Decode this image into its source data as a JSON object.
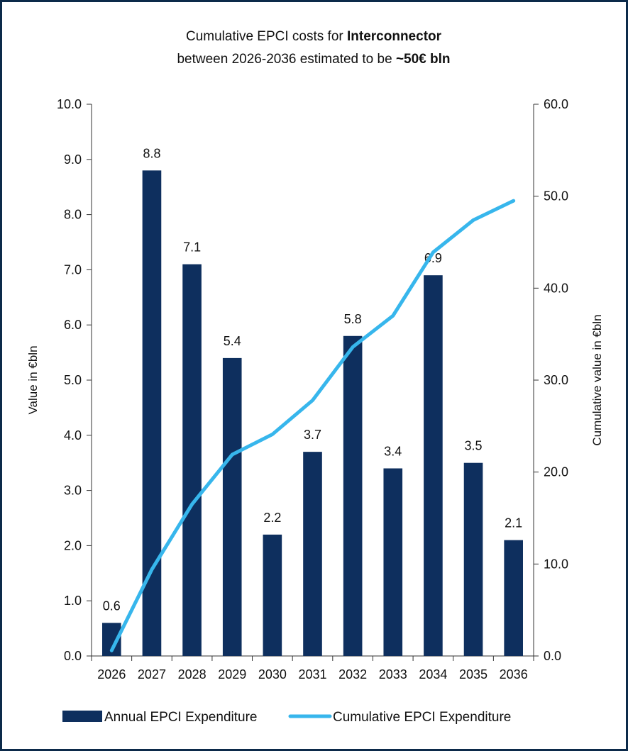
{
  "chart_data": {
    "type": "bar",
    "title_prefix": "Cumulative EPCI costs for ",
    "title_bold": "Interconnector",
    "subtitle_prefix": "between 2026-2036 estimated to be ",
    "subtitle_bold": "~50€ bln",
    "categories": [
      "2026",
      "2027",
      "2028",
      "2029",
      "2030",
      "2031",
      "2032",
      "2033",
      "2034",
      "2035",
      "2036"
    ],
    "series": [
      {
        "name": "Annual EPCI Expenditure",
        "type": "bar",
        "axis": "left",
        "color": "#0e2f5e",
        "values": [
          0.6,
          8.8,
          7.1,
          5.4,
          2.2,
          3.7,
          5.8,
          3.4,
          6.9,
          3.5,
          2.1
        ],
        "labels": [
          "0.6",
          "8.8",
          "7.1",
          "5.4",
          "2.2",
          "3.7",
          "5.8",
          "3.4",
          "6.9",
          "3.5",
          "2.1"
        ]
      },
      {
        "name": "Cumulative EPCI Expenditure",
        "type": "line",
        "axis": "right",
        "color": "#37b6ec",
        "values": [
          0.6,
          9.4,
          16.5,
          21.9,
          24.1,
          27.8,
          33.6,
          37.0,
          43.9,
          47.4,
          49.5
        ]
      }
    ],
    "ylabel": "Value in €bln",
    "y2label": "Cumulative value in €bln",
    "ylim": [
      0,
      10
    ],
    "y2lim": [
      0,
      60
    ],
    "yticks": [
      "0.0",
      "1.0",
      "2.0",
      "3.0",
      "4.0",
      "5.0",
      "6.0",
      "7.0",
      "8.0",
      "9.0",
      "10.0"
    ],
    "y2ticks": [
      "0.0",
      "10.0",
      "20.0",
      "30.0",
      "40.0",
      "50.0",
      "60.0"
    ],
    "grid": false,
    "legend": "bottom"
  }
}
